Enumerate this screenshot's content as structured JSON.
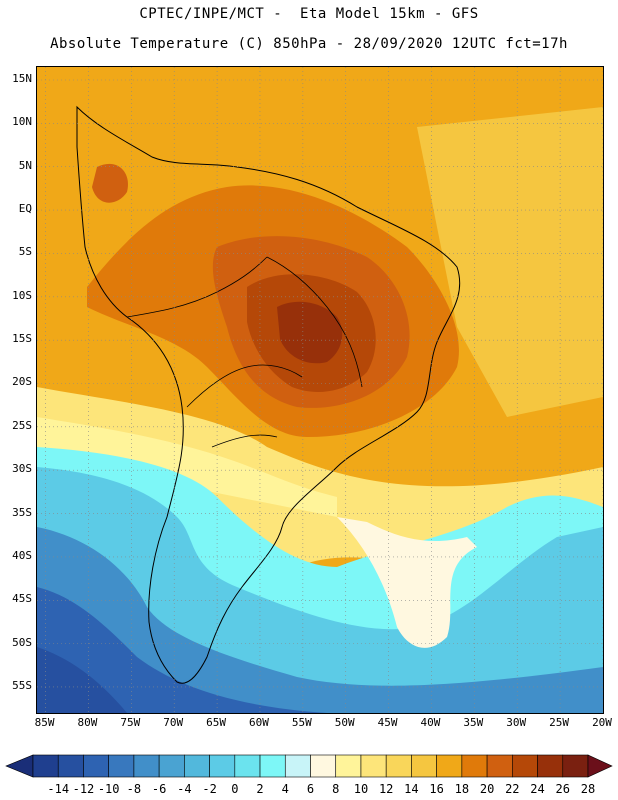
{
  "header": {
    "line1": "CPTEC/INPE/MCT -  Eta Model 15km - GFS",
    "line2": "Absolute Temperature (C) 850hPa - 28/09/2020 12UTC fct=17h"
  },
  "map": {
    "lat_labels": [
      "15N",
      "10N",
      "5N",
      "EQ",
      "5S",
      "10S",
      "15S",
      "20S",
      "25S",
      "30S",
      "35S",
      "40S",
      "45S",
      "50S",
      "55S"
    ],
    "lat_values": [
      15,
      10,
      5,
      0,
      -5,
      -10,
      -15,
      -20,
      -25,
      -30,
      -35,
      -40,
      -45,
      -50,
      -55
    ],
    "lon_labels": [
      "85W",
      "80W",
      "75W",
      "70W",
      "65W",
      "60W",
      "55W",
      "50W",
      "45W",
      "40W",
      "35W",
      "30W",
      "25W",
      "20W"
    ],
    "lon_values": [
      -85,
      -80,
      -75,
      -70,
      -65,
      -60,
      -55,
      -50,
      -45,
      -40,
      -35,
      -30,
      -25,
      -20
    ],
    "lat_range": [
      -58,
      16.5
    ],
    "lon_range": [
      -86,
      -20
    ]
  },
  "colorbar": {
    "labels": [
      "-14",
      "-12",
      "-10",
      "-8",
      "-6",
      "-4",
      "-2",
      "0",
      "2",
      "4",
      "6",
      "8",
      "10",
      "12",
      "14",
      "16",
      "18",
      "20",
      "22",
      "24",
      "26",
      "28"
    ],
    "colors": [
      "#1f3f8f",
      "#2650a0",
      "#2e63b2",
      "#3878be",
      "#418fc9",
      "#4aa3d2",
      "#52b8dc",
      "#5ccbe6",
      "#6be3ee",
      "#7df7f7",
      "#c8f4f8",
      "#fff8e0",
      "#fff49a",
      "#fde57a",
      "#f9d65a",
      "#f5c640",
      "#f0a818",
      "#e07a0a",
      "#d06010",
      "#b54808",
      "#97300a",
      "#7a2010"
    ],
    "left_arrow_color": "#1a2e78",
    "right_arrow_color": "#6b0f1a"
  }
}
